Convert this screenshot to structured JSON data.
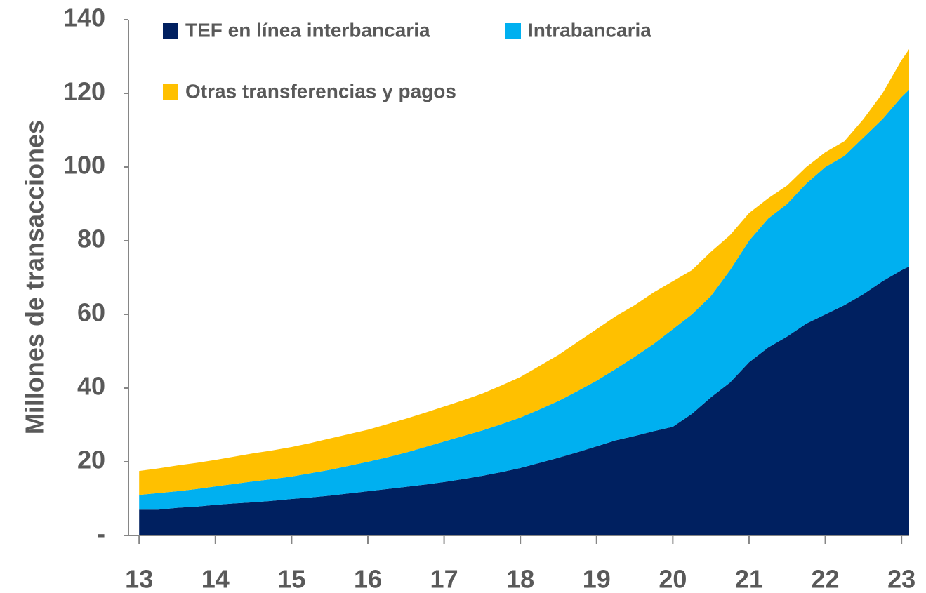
{
  "chart_data": {
    "type": "stacked-area",
    "y_label": "Millones de transacciones",
    "x": [
      13,
      13.25,
      13.5,
      13.75,
      14,
      14.25,
      14.5,
      14.75,
      15,
      15.25,
      15.5,
      15.75,
      16,
      16.25,
      16.5,
      16.75,
      17,
      17.25,
      17.5,
      17.75,
      18,
      18.25,
      18.5,
      18.75,
      19,
      19.25,
      19.5,
      19.75,
      20,
      20.25,
      20.5,
      20.75,
      21,
      21.25,
      21.5,
      21.75,
      22,
      22.25,
      22.5,
      22.75,
      23,
      23.1
    ],
    "series": [
      {
        "name": "TEF en línea interbancaria",
        "color": "#002060",
        "values": [
          7,
          7,
          7.5,
          7.8,
          8.3,
          8.7,
          9,
          9.4,
          9.9,
          10.3,
          10.8,
          11.4,
          12,
          12.6,
          13.2,
          13.8,
          14.5,
          15.3,
          16.2,
          17.2,
          18.3,
          19.7,
          21.1,
          22.6,
          24.2,
          25.8,
          27,
          28.3,
          29.5,
          33,
          37.5,
          41.5,
          47,
          51,
          54,
          57.5,
          60,
          62.5,
          65.5,
          69,
          72,
          73
        ]
      },
      {
        "name": "Intrabancaria",
        "color": "#00b0f0",
        "values": [
          4,
          4.5,
          4.5,
          4.8,
          5,
          5.3,
          5.7,
          5.9,
          6.1,
          6.6,
          7,
          7.5,
          8,
          8.6,
          9.3,
          10.2,
          11,
          11.7,
          12.3,
          13,
          13.7,
          14.5,
          15.4,
          16.6,
          17.8,
          19.4,
          21.5,
          23.7,
          26.5,
          27,
          27.5,
          30.5,
          33,
          35,
          36,
          38,
          40,
          40.5,
          42.5,
          44,
          47,
          48
        ]
      },
      {
        "name": "Otras transferencias y pagos",
        "color": "#ffc000",
        "values": [
          6.5,
          6.7,
          7,
          7.1,
          7.2,
          7.4,
          7.6,
          7.8,
          8,
          8.2,
          8.5,
          8.6,
          8.7,
          9,
          9.2,
          9.3,
          9.5,
          9.7,
          10,
          10.5,
          11,
          11.8,
          12.5,
          13.3,
          14,
          14.3,
          14,
          14,
          13,
          12,
          12,
          9.5,
          7.5,
          5.5,
          5,
          4.5,
          4,
          4,
          5,
          7,
          10,
          11
        ]
      }
    ],
    "xlim": [
      12.86,
      23.1
    ],
    "xticks": [
      13,
      14,
      15,
      16,
      17,
      18,
      19,
      20,
      21,
      22,
      23
    ],
    "ylim": [
      0,
      140
    ],
    "yticks": [
      {
        "value": 0,
        "label": "-"
      },
      20,
      40,
      60,
      80,
      100,
      120,
      140
    ],
    "legend": "upper left"
  }
}
